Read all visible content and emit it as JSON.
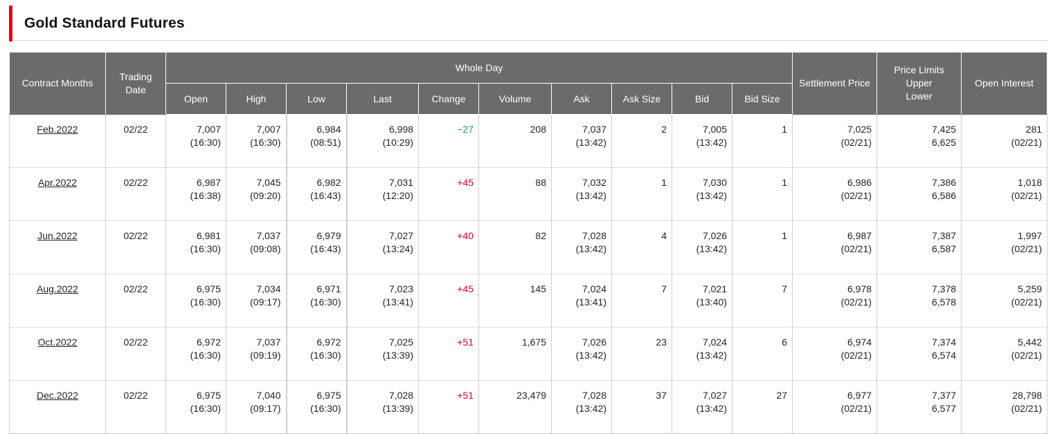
{
  "title": "Gold Standard Futures",
  "colors": {
    "accent": "#e60012",
    "header_bg": "#6b6b6b",
    "positive": "#d8002a",
    "negative": "#1aa84a"
  },
  "headers": {
    "contract_months": "Contract Months",
    "trading_date": [
      "Trading",
      "Date"
    ],
    "whole_day": "Whole Day",
    "open": "Open",
    "high": "High",
    "low": "Low",
    "last": "Last",
    "change": "Change",
    "volume": "Volume",
    "ask": "Ask",
    "ask_size": "Ask Size",
    "bid": "Bid",
    "bid_size": "Bid Size",
    "settlement_price": "Settlement Price",
    "price_limits": [
      "Price Limits",
      "Upper",
      "Lower"
    ],
    "open_interest": "Open Interest"
  },
  "rows": [
    {
      "month": "Feb.2022",
      "date": "02/22",
      "open": "7,007",
      "open_time": "(16:30)",
      "high": "7,007",
      "high_time": "(16:30)",
      "low": "6,984",
      "low_time": "(08:51)",
      "last": "6,998",
      "last_time": "(10:29)",
      "change": "−27",
      "change_dir": "neg",
      "volume": "208",
      "ask": "7,037",
      "ask_time": "(13:42)",
      "ask_size": "2",
      "bid": "7,005",
      "bid_time": "(13:42)",
      "bid_size": "1",
      "settlement": "7,025",
      "settlement_date": "(02/21)",
      "upper": "7,425",
      "lower": "6,625",
      "oi": "281",
      "oi_date": "(02/21)"
    },
    {
      "month": "Apr.2022",
      "date": "02/22",
      "open": "6,987",
      "open_time": "(16:38)",
      "high": "7,045",
      "high_time": "(09:20)",
      "low": "6,982",
      "low_time": "(16:43)",
      "last": "7,031",
      "last_time": "(12:20)",
      "change": "+45",
      "change_dir": "pos",
      "volume": "88",
      "ask": "7,032",
      "ask_time": "(13:42)",
      "ask_size": "1",
      "bid": "7,030",
      "bid_time": "(13:42)",
      "bid_size": "1",
      "settlement": "6,986",
      "settlement_date": "(02/21)",
      "upper": "7,386",
      "lower": "6,586",
      "oi": "1,018",
      "oi_date": "(02/21)"
    },
    {
      "month": "Jun.2022",
      "date": "02/22",
      "open": "6,981",
      "open_time": "(16:30)",
      "high": "7,037",
      "high_time": "(09:08)",
      "low": "6,979",
      "low_time": "(16:43)",
      "last": "7,027",
      "last_time": "(13:24)",
      "change": "+40",
      "change_dir": "pos",
      "volume": "82",
      "ask": "7,028",
      "ask_time": "(13:42)",
      "ask_size": "4",
      "bid": "7,026",
      "bid_time": "(13:42)",
      "bid_size": "1",
      "settlement": "6,987",
      "settlement_date": "(02/21)",
      "upper": "7,387",
      "lower": "6,587",
      "oi": "1,997",
      "oi_date": "(02/21)"
    },
    {
      "month": "Aug.2022",
      "date": "02/22",
      "open": "6,975",
      "open_time": "(16:30)",
      "high": "7,034",
      "high_time": "(09:17)",
      "low": "6,971",
      "low_time": "(16:30)",
      "last": "7,023",
      "last_time": "(13:41)",
      "change": "+45",
      "change_dir": "pos",
      "volume": "145",
      "ask": "7,024",
      "ask_time": "(13:41)",
      "ask_size": "7",
      "bid": "7,021",
      "bid_time": "(13:40)",
      "bid_size": "7",
      "settlement": "6,978",
      "settlement_date": "(02/21)",
      "upper": "7,378",
      "lower": "6,578",
      "oi": "5,259",
      "oi_date": "(02/21)"
    },
    {
      "month": "Oct.2022",
      "date": "02/22",
      "open": "6,972",
      "open_time": "(16:30)",
      "high": "7,037",
      "high_time": "(09:19)",
      "low": "6,972",
      "low_time": "(16:30)",
      "last": "7,025",
      "last_time": "(13:39)",
      "change": "+51",
      "change_dir": "pos",
      "volume": "1,675",
      "ask": "7,026",
      "ask_time": "(13:42)",
      "ask_size": "23",
      "bid": "7,024",
      "bid_time": "(13:42)",
      "bid_size": "6",
      "settlement": "6,974",
      "settlement_date": "(02/21)",
      "upper": "7,374",
      "lower": "6,574",
      "oi": "5,442",
      "oi_date": "(02/21)"
    },
    {
      "month": "Dec.2022",
      "date": "02/22",
      "open": "6,975",
      "open_time": "(16:30)",
      "high": "7,040",
      "high_time": "(09:17)",
      "low": "6,975",
      "low_time": "(16:30)",
      "last": "7,028",
      "last_time": "(13:39)",
      "change": "+51",
      "change_dir": "pos",
      "volume": "23,479",
      "ask": "7,028",
      "ask_time": "(13:42)",
      "ask_size": "37",
      "bid": "7,027",
      "bid_time": "(13:42)",
      "bid_size": "27",
      "settlement": "6,977",
      "settlement_date": "(02/21)",
      "upper": "7,377",
      "lower": "6,577",
      "oi": "28,798",
      "oi_date": "(02/21)"
    }
  ]
}
